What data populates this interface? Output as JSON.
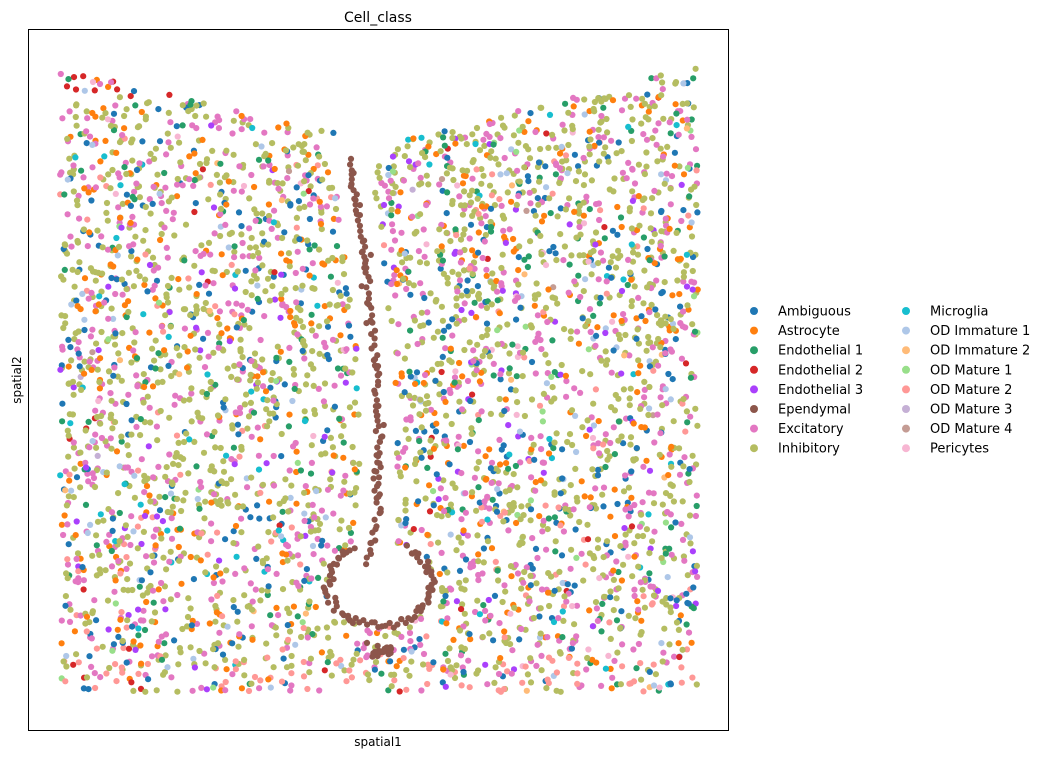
{
  "chart_data": {
    "type": "scatter",
    "title": "Cell_class",
    "xlabel": "spatial1",
    "ylabel": "spatial2",
    "xticks": false,
    "yticks": false,
    "grid": false,
    "legend_position": "right",
    "legend_columns": 2,
    "xlim": [
      0,
      1
    ],
    "ylim": [
      0,
      1
    ],
    "categories": [
      {
        "name": "Ambiguous",
        "color": "#1f77b4"
      },
      {
        "name": "Astrocyte",
        "color": "#ff7f0e"
      },
      {
        "name": "Endothelial 1",
        "color": "#279e68"
      },
      {
        "name": "Endothelial 2",
        "color": "#d62728"
      },
      {
        "name": "Endothelial 3",
        "color": "#aa40fc"
      },
      {
        "name": "Ependymal",
        "color": "#8c564b"
      },
      {
        "name": "Excitatory",
        "color": "#e377c2"
      },
      {
        "name": "Inhibitory",
        "color": "#b5bd61"
      },
      {
        "name": "Microglia",
        "color": "#17becf"
      },
      {
        "name": "OD Immature 1",
        "color": "#aec7e8"
      },
      {
        "name": "OD Immature 2",
        "color": "#ffbb78"
      },
      {
        "name": "OD Mature 1",
        "color": "#98df8a"
      },
      {
        "name": "OD Mature 2",
        "color": "#ff9896"
      },
      {
        "name": "OD Mature 3",
        "color": "#c5b0d5"
      },
      {
        "name": "OD Mature 4",
        "color": "#c49c94"
      },
      {
        "name": "Pericytes",
        "color": "#f7b6d2"
      }
    ],
    "approx_point_count": 4000,
    "ependymal_path": [
      [
        0.454,
        0.843
      ],
      [
        0.458,
        0.81
      ],
      [
        0.462,
        0.778
      ],
      [
        0.47,
        0.745
      ],
      [
        0.474,
        0.712
      ],
      [
        0.478,
        0.68
      ],
      [
        0.482,
        0.648
      ],
      [
        0.486,
        0.615
      ],
      [
        0.49,
        0.582
      ],
      [
        0.493,
        0.55
      ],
      [
        0.495,
        0.518
      ],
      [
        0.496,
        0.485
      ],
      [
        0.497,
        0.452
      ],
      [
        0.498,
        0.42
      ],
      [
        0.499,
        0.388
      ],
      [
        0.5,
        0.356
      ],
      [
        0.5,
        0.322
      ],
      [
        0.498,
        0.29
      ],
      [
        0.493,
        0.258
      ],
      [
        0.487,
        0.226
      ],
      [
        0.478,
        0.196
      ]
    ],
    "ependymal_loop": {
      "center": [
        0.502,
        0.17
      ],
      "rx": 0.082,
      "ry": 0.065
    },
    "empty_notch": {
      "top": 0.91,
      "bottom": 0.84,
      "left": 0.43,
      "right": 0.52
    },
    "sampling_weights": {
      "Ambiguous": 0.09,
      "Astrocyte": 0.1,
      "Endothelial 1": 0.05,
      "Endothelial 2": 0.01,
      "Endothelial 3": 0.025,
      "Ependymal": 0.0,
      "Excitatory": 0.22,
      "Inhibitory": 0.4,
      "Microglia": 0.015,
      "OD Immature 1": 0.025,
      "OD Immature 2": 0.003,
      "OD Mature 1": 0.01,
      "OD Mature 2": 0.035,
      "OD Mature 3": 0.003,
      "OD Mature 4": 0.002,
      "Pericytes": 0.007
    }
  }
}
